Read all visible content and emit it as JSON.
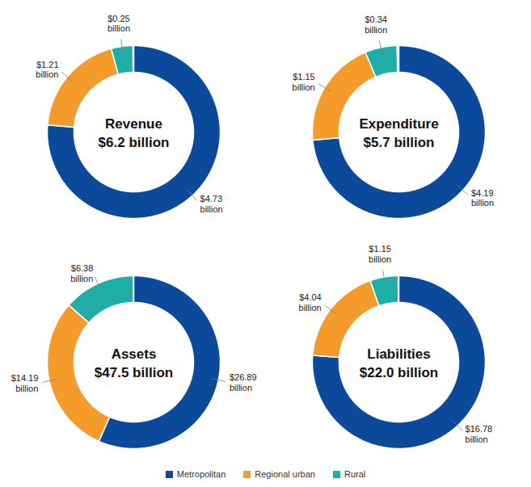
{
  "chart_data": [
    {
      "type": "donut",
      "title": "Revenue",
      "total": 6.2,
      "total_label": "$6.2 billion",
      "categories": [
        "Metropolitan",
        "Regional urban",
        "Rural"
      ],
      "values": [
        4.73,
        1.21,
        0.25
      ],
      "value_labels": [
        "$4.73 billion",
        "$1.21 billion",
        "$0.25 billion"
      ],
      "colors": [
        "#0b4a9b",
        "#f59b2b",
        "#1fada8"
      ],
      "data_labels": true,
      "legend": "bottom",
      "tick_labels": false
    },
    {
      "type": "donut",
      "title": "Expenditure",
      "total": 5.7,
      "total_label": "$5.7 billion",
      "categories": [
        "Metropolitan",
        "Regional urban",
        "Rural"
      ],
      "values": [
        4.19,
        1.15,
        0.34
      ],
      "value_labels": [
        "$4.19 billion",
        "$1.15 billion",
        "$0.34 billion"
      ],
      "colors": [
        "#0b4a9b",
        "#f59b2b",
        "#1fada8"
      ],
      "data_labels": true,
      "legend": "bottom",
      "tick_labels": false
    },
    {
      "type": "donut",
      "title": "Assets",
      "total": 47.5,
      "total_label": "$47.5 billion",
      "categories": [
        "Metropolitan",
        "Regional urban",
        "Rural"
      ],
      "values": [
        26.89,
        14.19,
        6.38
      ],
      "value_labels": [
        "$26.89 billion",
        "$14.19 billion",
        "$6.38 billion"
      ],
      "colors": [
        "#0b4a9b",
        "#f59b2b",
        "#1fada8"
      ],
      "data_labels": true,
      "legend": "bottom",
      "tick_labels": false
    },
    {
      "type": "donut",
      "title": "Liabilities",
      "total": 22.0,
      "total_label": "$22.0 billion",
      "categories": [
        "Metropolitan",
        "Regional urban",
        "Rural"
      ],
      "values": [
        16.78,
        4.04,
        1.15
      ],
      "value_labels": [
        "$16.78 billion",
        "$4.04 billion",
        "$1.15 billion"
      ],
      "colors": [
        "#0b4a9b",
        "#f59b2b",
        "#1fada8"
      ],
      "data_labels": true,
      "legend": "bottom",
      "tick_labels": false
    }
  ]
}
